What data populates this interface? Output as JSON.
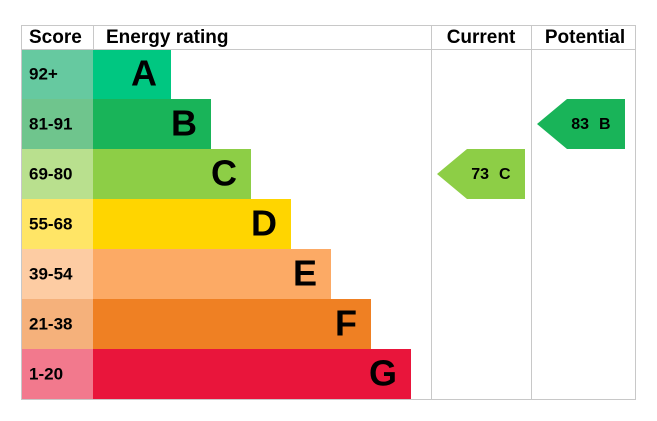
{
  "header": {
    "score": "Score",
    "rating": "Energy rating",
    "current": "Current",
    "potential": "Potential"
  },
  "bands": [
    {
      "score": "92+",
      "letter": "A",
      "color": "#00c781",
      "light": "#66c9a0"
    },
    {
      "score": "81-91",
      "letter": "B",
      "color": "#19b459",
      "light": "#6fc58d"
    },
    {
      "score": "69-80",
      "letter": "C",
      "color": "#8dce46",
      "light": "#b9e08e"
    },
    {
      "score": "55-68",
      "letter": "D",
      "color": "#ffd500",
      "light": "#ffe566"
    },
    {
      "score": "39-54",
      "letter": "E",
      "color": "#fcaa65",
      "light": "#fdcca3"
    },
    {
      "score": "21-38",
      "letter": "F",
      "color": "#ef8023",
      "light": "#f5b17b"
    },
    {
      "score": "1-20",
      "letter": "G",
      "color": "#e9153b",
      "light": "#f2798d"
    }
  ],
  "current": {
    "value": 73,
    "letter": "C"
  },
  "potential": {
    "value": 83,
    "letter": "B"
  }
}
